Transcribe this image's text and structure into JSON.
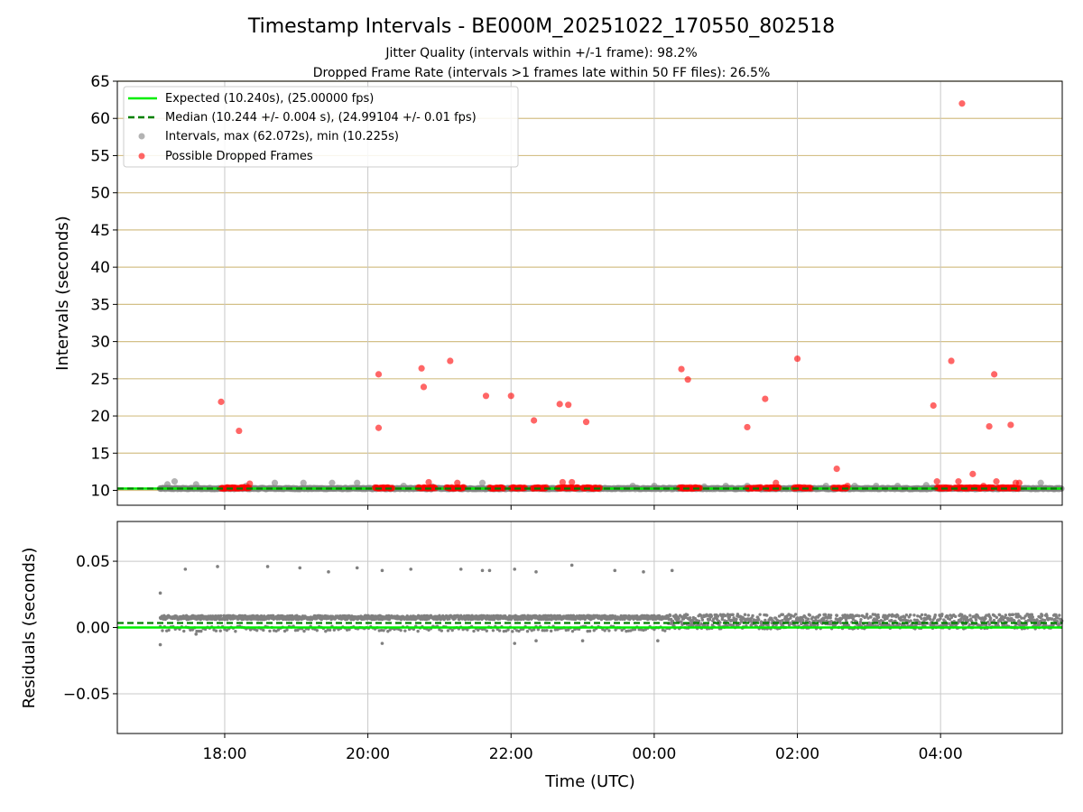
{
  "title": "Timestamp Intervals - BE000M_20251022_170550_802518",
  "subtitle_1": "Jitter Quality (intervals within +/-1 frame): 98.2%",
  "subtitle_2": "Dropped Frame Rate (intervals >1 frames late within 50 FF files): 26.5%",
  "colors": {
    "expected": "#00ee00",
    "median": "#008000",
    "interval": "#808080",
    "dropped": "#ff0000",
    "hgrid": "#d4c088",
    "vgrid": "#c8c8c8"
  },
  "chart_data": [
    {
      "type": "scatter",
      "name": "intervals",
      "ylabel": "Intervals (seconds)",
      "xlim_hours": [
        16.5,
        29.7
      ],
      "ylim": [
        8,
        65
      ],
      "yticks": [
        "10",
        "15",
        "20",
        "25",
        "30",
        "35",
        "40",
        "45",
        "50",
        "55",
        "60",
        "65"
      ],
      "ytick_values": [
        10,
        15,
        20,
        25,
        30,
        35,
        40,
        45,
        50,
        55,
        60,
        65
      ],
      "xtick_values": [
        18,
        20,
        22,
        24,
        26,
        28
      ],
      "grid": "horizontal lines + vertical lines at ticks",
      "legend_position": "top-left",
      "legend": [
        "Expected (10.240s), (25.00000 fps)",
        "Median (10.244 +/- 0.004 s), (24.99104 +/- 0.01 fps)",
        "Intervals, max (62.072s), min (10.225s)",
        "Possible Dropped Frames"
      ],
      "expected_value": 10.24,
      "median_value": 10.244,
      "data_start_hour": 17.1,
      "interval_points": [
        [
          17.1,
          10.24
        ],
        [
          17.2,
          10.8
        ],
        [
          17.3,
          11.2
        ],
        [
          17.6,
          10.8
        ],
        [
          17.8,
          10.3
        ],
        [
          18.3,
          10.6
        ],
        [
          18.7,
          11.0
        ],
        [
          19.1,
          11.0
        ],
        [
          19.5,
          11.0
        ],
        [
          19.85,
          11.0
        ],
        [
          20.5,
          10.6
        ],
        [
          20.9,
          10.5
        ],
        [
          21.6,
          11.0
        ],
        [
          23.7,
          10.6
        ],
        [
          24.0,
          10.6
        ],
        [
          24.4,
          10.4
        ],
        [
          24.7,
          10.5
        ],
        [
          25.0,
          10.6
        ],
        [
          25.3,
          10.6
        ],
        [
          26.4,
          10.6
        ],
        [
          26.8,
          10.6
        ],
        [
          27.1,
          10.6
        ],
        [
          27.4,
          10.6
        ],
        [
          27.8,
          10.7
        ],
        [
          29.4,
          11.0
        ]
      ],
      "dropped_points": [
        [
          17.95,
          21.9
        ],
        [
          18.2,
          18.0
        ],
        [
          18.35,
          10.9
        ],
        [
          20.15,
          25.6
        ],
        [
          20.15,
          18.4
        ],
        [
          20.75,
          26.4
        ],
        [
          20.78,
          23.9
        ],
        [
          20.85,
          11.1
        ],
        [
          21.15,
          27.4
        ],
        [
          21.25,
          11.0
        ],
        [
          21.65,
          22.7
        ],
        [
          22.0,
          22.7
        ],
        [
          22.32,
          19.4
        ],
        [
          22.68,
          21.6
        ],
        [
          22.8,
          21.5
        ],
        [
          22.72,
          11.1
        ],
        [
          22.85,
          11.1
        ],
        [
          23.05,
          19.2
        ],
        [
          24.38,
          26.3
        ],
        [
          24.47,
          24.9
        ],
        [
          25.3,
          18.5
        ],
        [
          25.55,
          22.3
        ],
        [
          25.7,
          11.0
        ],
        [
          26.0,
          27.7
        ],
        [
          26.55,
          12.9
        ],
        [
          26.7,
          10.6
        ],
        [
          27.9,
          21.4
        ],
        [
          27.95,
          11.2
        ],
        [
          28.15,
          27.4
        ],
        [
          28.25,
          11.2
        ],
        [
          28.3,
          62.0
        ],
        [
          28.45,
          12.2
        ],
        [
          28.6,
          10.6
        ],
        [
          28.68,
          18.6
        ],
        [
          28.75,
          25.6
        ],
        [
          28.78,
          11.2
        ],
        [
          28.98,
          18.8
        ],
        [
          29.05,
          11.0
        ],
        [
          29.1,
          11.0
        ]
      ],
      "dropped_clusters": [
        [
          17.95,
          18.15
        ],
        [
          18.15,
          18.35
        ],
        [
          20.1,
          20.35
        ],
        [
          20.7,
          20.95
        ],
        [
          21.1,
          21.35
        ],
        [
          21.7,
          21.9
        ],
        [
          22.0,
          22.2
        ],
        [
          22.3,
          22.5
        ],
        [
          22.65,
          22.95
        ],
        [
          23.0,
          23.25
        ],
        [
          24.35,
          24.65
        ],
        [
          25.3,
          25.5
        ],
        [
          25.55,
          25.75
        ],
        [
          25.95,
          26.2
        ],
        [
          26.5,
          26.7
        ],
        [
          27.95,
          28.15
        ],
        [
          28.2,
          28.75
        ],
        [
          28.8,
          29.1
        ]
      ]
    },
    {
      "type": "scatter",
      "name": "residuals",
      "ylabel": "Residuals (seconds)",
      "xlabel": "Time (UTC)",
      "ylim": [
        -0.08,
        0.08
      ],
      "yticks": [
        "0.05",
        "0.00",
        "−0.05"
      ],
      "ytick_values": [
        0.05,
        0.0,
        -0.05
      ],
      "xticks": [
        "18:00",
        "20:00",
        "22:00",
        "00:00",
        "02:00",
        "04:00"
      ],
      "xtick_values": [
        18,
        20,
        22,
        24,
        26,
        28
      ],
      "expected_residual": 0.0,
      "median_residual": 0.0034,
      "outliers": [
        [
          17.1,
          0.026
        ],
        [
          17.1,
          -0.013
        ],
        [
          17.45,
          0.044
        ],
        [
          17.9,
          0.046
        ],
        [
          18.6,
          0.046
        ],
        [
          19.05,
          0.045
        ],
        [
          19.45,
          0.042
        ],
        [
          19.85,
          0.045
        ],
        [
          20.2,
          0.043
        ],
        [
          20.6,
          0.044
        ],
        [
          21.3,
          0.044
        ],
        [
          21.6,
          0.043
        ],
        [
          21.7,
          0.043
        ],
        [
          22.05,
          0.044
        ],
        [
          22.35,
          0.042
        ],
        [
          22.85,
          0.047
        ],
        [
          23.45,
          0.043
        ],
        [
          23.85,
          0.042
        ],
        [
          24.25,
          0.043
        ],
        [
          24.05,
          -0.01
        ],
        [
          20.2,
          -0.012
        ],
        [
          22.05,
          -0.012
        ],
        [
          22.35,
          -0.01
        ],
        [
          23.0,
          -0.01
        ],
        [
          17.6,
          -0.005
        ]
      ],
      "bands": [
        {
          "start": 17.1,
          "end": 24.2,
          "center": 0.0075,
          "spread": 0.0015
        },
        {
          "start": 24.2,
          "end": 29.7,
          "center": 0.0045,
          "spread": 0.0055
        }
      ]
    }
  ]
}
